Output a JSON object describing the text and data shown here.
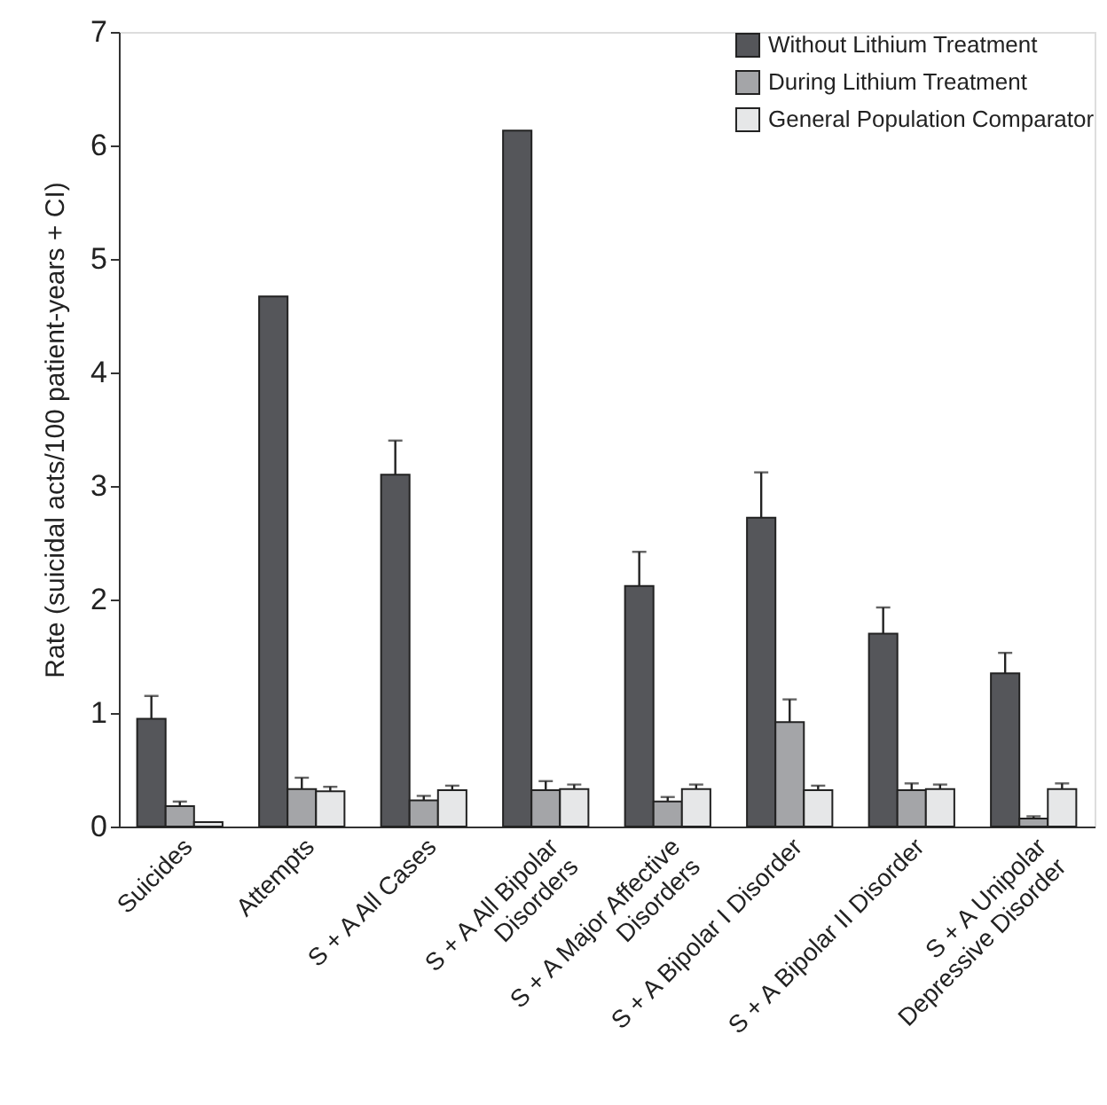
{
  "chart_data": {
    "type": "bar",
    "ylabel": "Rate (suicidal acts/100 patient-years + CI)",
    "categories": [
      "Suicides",
      "Attempts",
      "S + A All Cases",
      "S + A All Bipolar\nDisorders",
      "S + A Major Affective\nDisorders",
      "S + A Bipolar I Disorder",
      "S + A Bipolar II Disorder",
      "S + A Unipolar\nDepressive Disorder"
    ],
    "series": [
      {
        "name": "Without Lithium Treatment",
        "color": "#55565a",
        "values": [
          0.95,
          4.67,
          3.1,
          6.13,
          2.12,
          2.72,
          1.7,
          1.35
        ],
        "errors": [
          [
            0.95,
            1.15
          ],
          null,
          [
            3.1,
            3.4
          ],
          null,
          [
            2.12,
            2.42
          ],
          [
            2.72,
            3.12
          ],
          [
            1.7,
            1.93
          ],
          [
            1.35,
            1.53
          ]
        ]
      },
      {
        "name": "During Lithium Treatment",
        "color": "#a4a5a8",
        "values": [
          0.18,
          0.33,
          0.23,
          0.32,
          0.22,
          0.92,
          0.32,
          0.07
        ],
        "errors": [
          [
            0.18,
            0.22
          ],
          [
            0.33,
            0.43
          ],
          [
            0.23,
            0.27
          ],
          [
            0.32,
            0.4
          ],
          [
            0.22,
            0.26
          ],
          [
            0.92,
            1.12
          ],
          [
            0.32,
            0.38
          ],
          [
            0.07,
            0.09
          ]
        ]
      },
      {
        "name": "General Population Comparator",
        "color": "#e6e7e8",
        "values": [
          0.04,
          0.31,
          0.32,
          0.33,
          0.33,
          0.32,
          0.33,
          0.33
        ],
        "errors": [
          null,
          [
            0.31,
            0.35
          ],
          [
            0.32,
            0.36
          ],
          [
            0.33,
            0.37
          ],
          [
            0.33,
            0.37
          ],
          [
            0.32,
            0.36
          ],
          [
            0.33,
            0.37
          ],
          [
            0.33,
            0.38
          ]
        ]
      }
    ],
    "ylim": [
      0,
      7
    ],
    "yticks": [
      0,
      1,
      2,
      3,
      4,
      5,
      6,
      7
    ],
    "grid": false,
    "legend": "top right"
  }
}
